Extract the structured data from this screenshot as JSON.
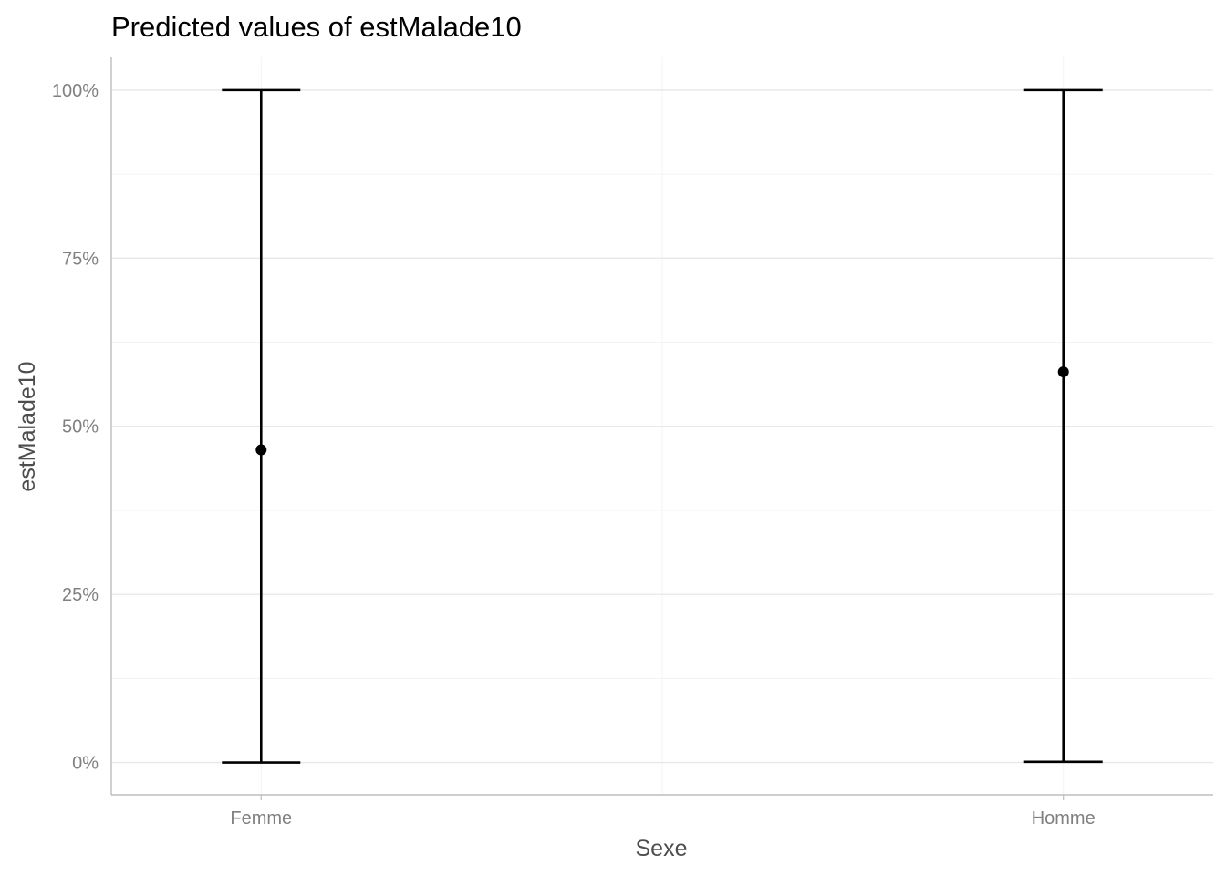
{
  "chart_data": {
    "type": "scatter",
    "title": "Predicted values of estMalade10",
    "xlabel": "Sexe",
    "ylabel": "estMalade10",
    "categories": [
      "Femme",
      "Homme"
    ],
    "points": [
      {
        "category": "Femme",
        "predicted": 0.465,
        "conf_low": 0.0,
        "conf_high": 1.0
      },
      {
        "category": "Homme",
        "predicted": 0.581,
        "conf_low": 0.001,
        "conf_high": 1.0
      }
    ],
    "ylim": [
      -0.048,
      1.05
    ],
    "yticks": [
      0,
      0.25,
      0.5,
      0.75,
      1.0
    ],
    "ytick_labels": [
      "0%",
      "25%",
      "50%",
      "75%",
      "100%"
    ],
    "grid": true,
    "color": "#000000"
  }
}
